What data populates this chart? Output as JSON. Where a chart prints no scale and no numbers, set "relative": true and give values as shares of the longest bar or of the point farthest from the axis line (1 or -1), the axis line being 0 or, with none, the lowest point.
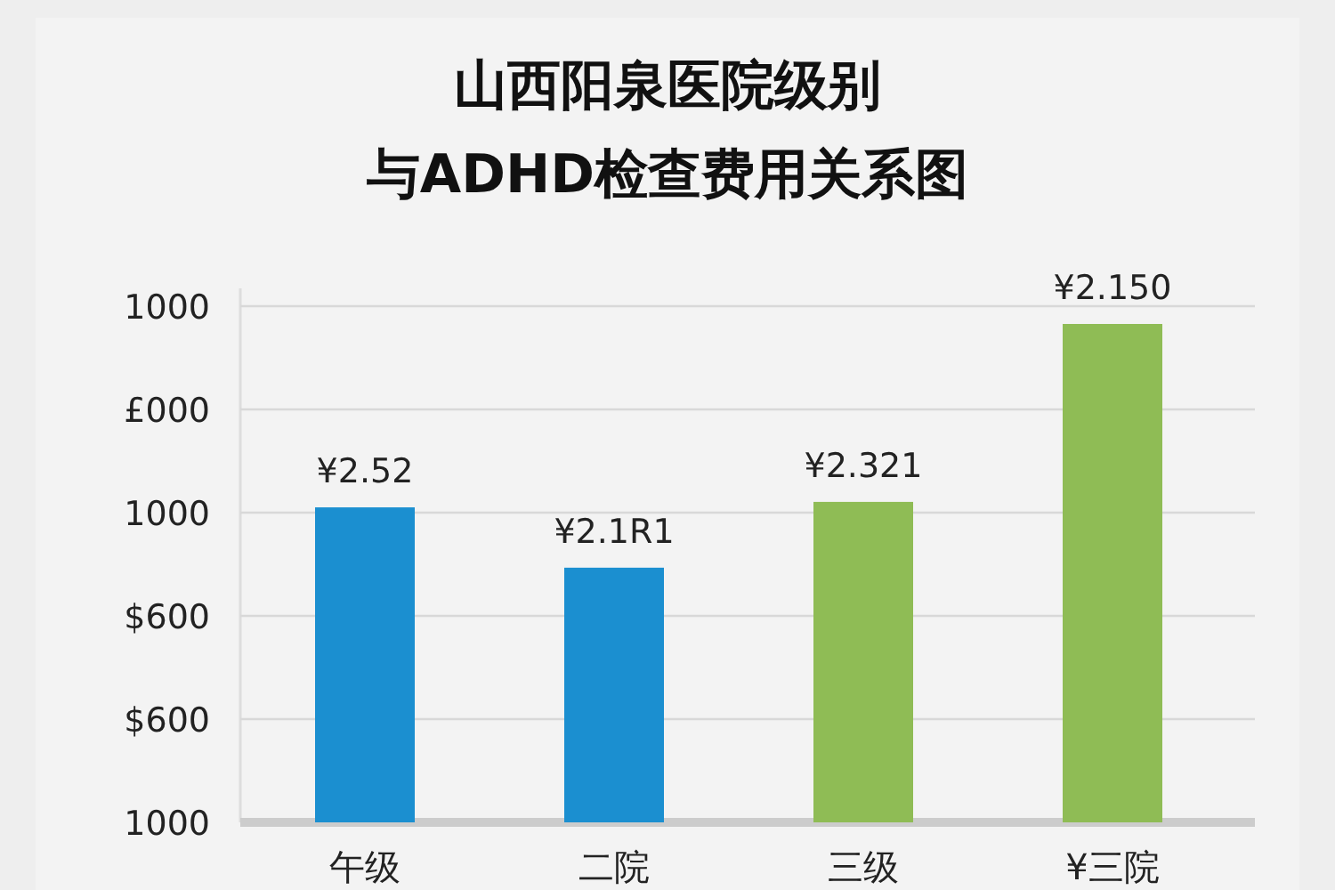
{
  "chart_data": {
    "type": "bar",
    "title": "山西阳泉医院级别",
    "subtitle": "与ADHD检查费用关系图",
    "categories": [
      "午级",
      "二院",
      "三级",
      "¥三院"
    ],
    "values": [
      0.632,
      0.511,
      0.643,
      1
    ],
    "colors": [
      "#1b8fd0",
      "#1b8fd0",
      "#8fbc55",
      "#8fbc55"
    ],
    "relative": true,
    "annotations": [
      "1000",
      "£000",
      "1000",
      "$600",
      "$600",
      "1000",
      {
        "text": "¥2.52",
        "x": "午级",
        "y": 0.632
      },
      {
        "text": "¥2.1R1",
        "x": "二院",
        "y": 0.511
      },
      {
        "text": "¥2.321",
        "x": "三级",
        "y": 0.643
      },
      {
        "text": "¥2.150",
        "x": "¥三院",
        "y": 1
      }
    ],
    "grid": "y"
  }
}
